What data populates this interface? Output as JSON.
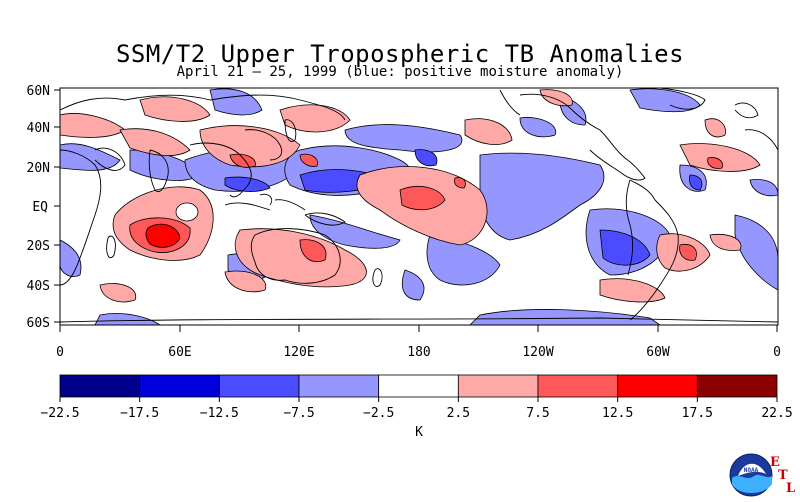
{
  "title": "SSM/T2 Upper Tropospheric TB Anomalies",
  "subtitle": "April 21 – 25, 1999 (blue: positive moisture anomaly)",
  "map": {
    "lat_ticks": [
      "60N",
      "40N",
      "20N",
      "EQ",
      "20S",
      "40S",
      "60S"
    ],
    "lon_ticks": [
      "0",
      "60E",
      "120E",
      "180",
      "120W",
      "60W",
      "0"
    ]
  },
  "colorbar": {
    "unit": "K",
    "ticks": [
      "-22.5",
      "-17.5",
      "-12.5",
      "-7.5",
      "-2.5",
      "2.5",
      "7.5",
      "12.5",
      "17.5",
      "22.5"
    ],
    "colors": [
      "#00008b",
      "#0000dd",
      "#4b4bff",
      "#9696ff",
      "#ffffff",
      "#ffa8a8",
      "#ff5858",
      "#ff0000",
      "#8b0000"
    ]
  },
  "logo": {
    "agency": "NOAA",
    "lab_letters": [
      "E",
      "T",
      "L"
    ]
  }
}
